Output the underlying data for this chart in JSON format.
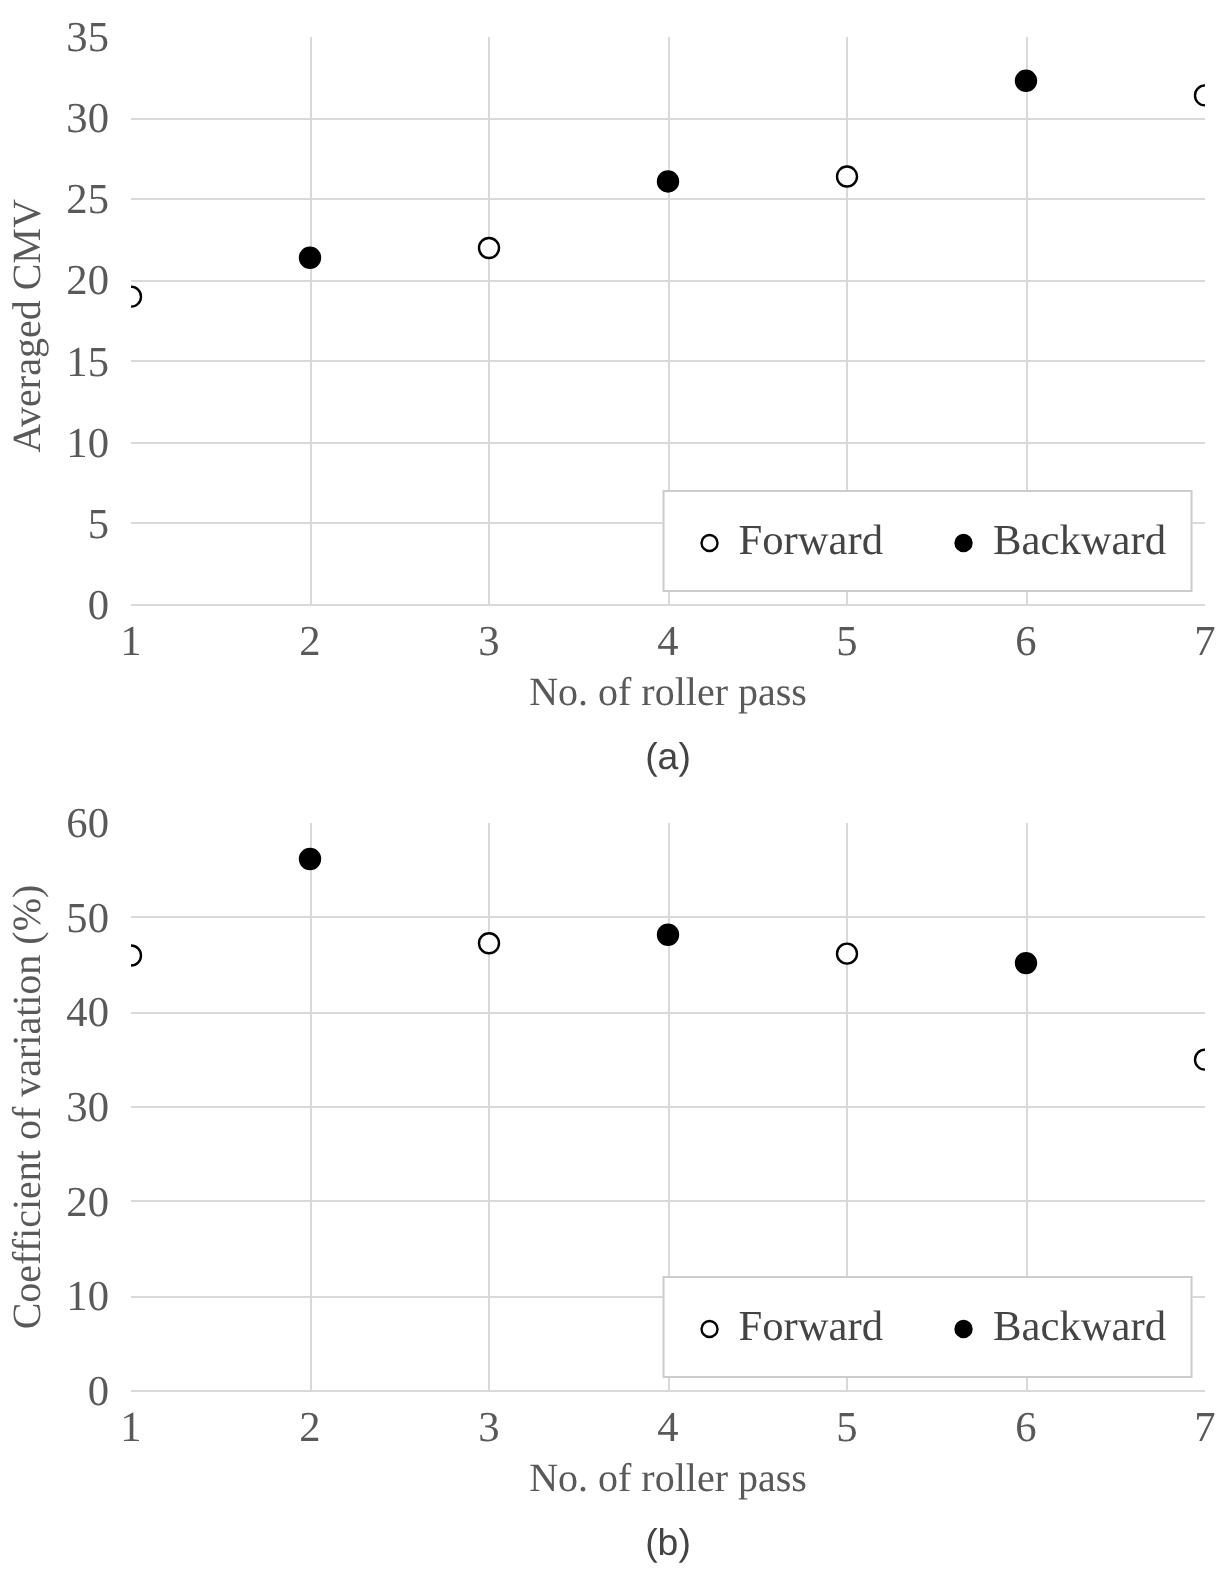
{
  "chart_data": [
    {
      "type": "scatter",
      "xlabel": "No. of roller pass",
      "ylabel": "Averaged  CMV",
      "annotations": [
        "(a)"
      ],
      "xlim": [
        1,
        7
      ],
      "xticks": [
        1,
        2,
        3,
        4,
        5,
        6,
        7
      ],
      "ylim": [
        0,
        35
      ],
      "yticks": [
        0,
        5,
        10,
        15,
        20,
        25,
        30,
        35
      ],
      "grid": true,
      "legend": "bottom right",
      "marker": "circle",
      "series": [
        {
          "name": "Forward",
          "color": "#ffffff",
          "x": [
            1,
            3,
            5,
            7
          ],
          "values": [
            19,
            22,
            26.4,
            31.4
          ]
        },
        {
          "name": "Backward",
          "color": "#000000",
          "x": [
            2,
            4,
            6
          ],
          "values": [
            21.4,
            26.1,
            32.3
          ]
        }
      ]
    },
    {
      "type": "scatter",
      "xlabel": "No. of roller pass",
      "ylabel": "Coefficient of variation (%)",
      "annotations": [
        "(b)"
      ],
      "xlim": [
        1,
        7
      ],
      "xticks": [
        1,
        2,
        3,
        4,
        5,
        6,
        7
      ],
      "ylim": [
        0,
        60
      ],
      "yticks": [
        0,
        10,
        20,
        30,
        40,
        50,
        60
      ],
      "grid": true,
      "legend": "bottom right",
      "marker": "circle",
      "series": [
        {
          "name": "Forward",
          "color": "#ffffff",
          "x": [
            1,
            3,
            5,
            7
          ],
          "values": [
            46,
            47.3,
            46.2,
            35
          ]
        },
        {
          "name": "Backward",
          "color": "#000000",
          "x": [
            2,
            4,
            6
          ],
          "values": [
            56.2,
            48.2,
            45.2
          ]
        }
      ]
    }
  ]
}
